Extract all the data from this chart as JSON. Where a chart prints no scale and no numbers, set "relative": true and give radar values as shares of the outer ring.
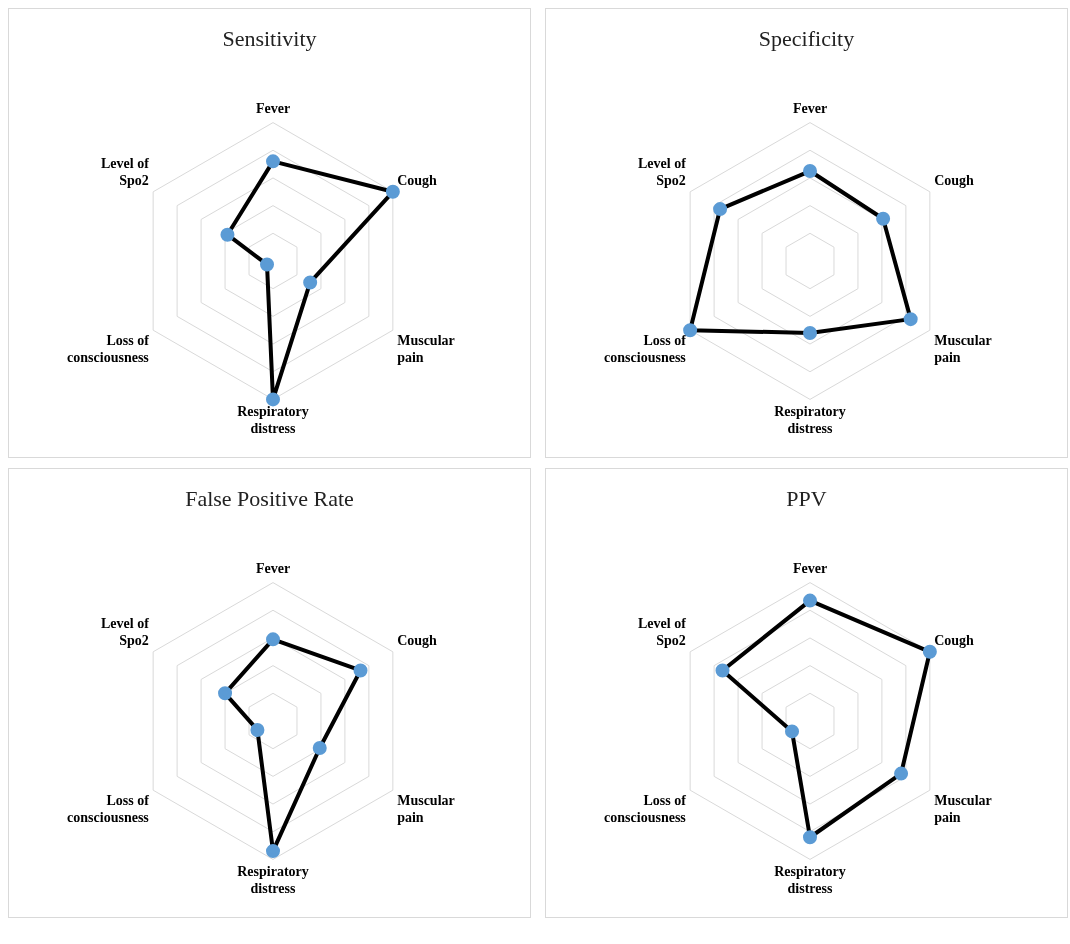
{
  "chart_data": [
    {
      "type": "radar",
      "title": "Sensitivity",
      "relative": true,
      "grid": true,
      "marker": "circle",
      "legend": false,
      "categories": [
        "Fever",
        "Cough",
        "Muscular pain",
        "Respiratory distress",
        "Loss of consciousness",
        "Level of Spo2"
      ],
      "colors": [
        "#5b9bd5",
        "#5b9bd5",
        "#5b9bd5",
        "#5b9bd5",
        "#5b9bd5",
        "#5b9bd5"
      ],
      "series": [
        {
          "color": "#000000",
          "values": [
            0.72,
            1.0,
            0.31,
            1.0,
            0.05,
            0.38
          ]
        }
      ]
    },
    {
      "type": "radar",
      "title": "Specificity",
      "relative": true,
      "grid": true,
      "marker": "circle",
      "legend": false,
      "categories": [
        "Fever",
        "Cough",
        "Muscular pain",
        "Respiratory distress",
        "Loss of consciousness",
        "Level of Spo2"
      ],
      "colors": [
        "#5b9bd5",
        "#5b9bd5",
        "#5b9bd5",
        "#5b9bd5",
        "#5b9bd5",
        "#5b9bd5"
      ],
      "series": [
        {
          "color": "#000000",
          "values": [
            0.65,
            0.61,
            0.84,
            0.52,
            1.0,
            0.75
          ]
        }
      ]
    },
    {
      "type": "radar",
      "title": "False Positive Rate",
      "relative": true,
      "grid": true,
      "marker": "circle",
      "legend": false,
      "categories": [
        "Fever",
        "Cough",
        "Muscular pain",
        "Respiratory distress",
        "Loss of consciousness",
        "Level of Spo2"
      ],
      "colors": [
        "#5b9bd5",
        "#5b9bd5",
        "#5b9bd5",
        "#5b9bd5",
        "#5b9bd5",
        "#5b9bd5"
      ],
      "series": [
        {
          "color": "#000000",
          "values": [
            0.59,
            0.73,
            0.39,
            0.94,
            0.13,
            0.4
          ]
        }
      ]
    },
    {
      "type": "radar",
      "title": "PPV",
      "relative": true,
      "grid": true,
      "marker": "circle",
      "legend": false,
      "categories": [
        "Fever",
        "Cough",
        "Muscular pain",
        "Respiratory distress",
        "Loss of consciousness",
        "Level of Spo2"
      ],
      "colors": [
        "#5b9bd5",
        "#5b9bd5",
        "#5b9bd5",
        "#5b9bd5",
        "#5b9bd5",
        "#5b9bd5"
      ],
      "series": [
        {
          "color": "#000000",
          "values": [
            0.87,
            1.0,
            0.76,
            0.84,
            0.15,
            0.73
          ]
        }
      ]
    }
  ]
}
